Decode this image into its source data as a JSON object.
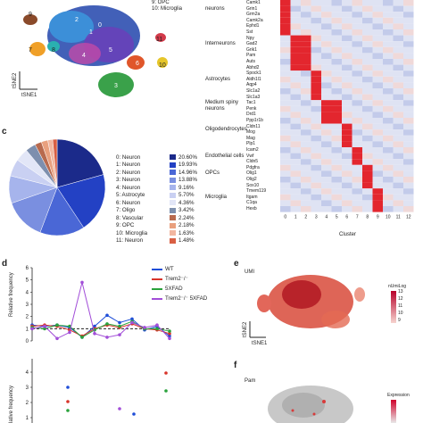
{
  "panel_a": {
    "cluster_numbers": [
      "9",
      "2",
      "1",
      "7",
      "8",
      "4",
      "5",
      "6",
      "3",
      "11",
      "0",
      "10"
    ],
    "legend_line1": "9: OPC",
    "legend_line2": "10: Microglia",
    "axis_x": "tSNE1",
    "axis_y": "tSNE2"
  },
  "panel_b": {
    "group_labels": [
      "neurons",
      "Interneurons",
      "Astrocytes",
      "Medium spiny neurons",
      "Oligodendrocytes",
      "Endothelial cells",
      "OPCs",
      "Microglia"
    ],
    "genes": [
      "Camk1",
      "Grin1",
      "Grm2a",
      "Camk2a",
      "Ephd1",
      "Sst",
      "Npy",
      "Gad2",
      "Grik1",
      "Pam",
      "Auts",
      "Abhd2",
      "Spock1",
      "Aldh1l1",
      "Aqp4",
      "Slc1a2",
      "Slc1a3",
      "Tac1",
      "Penk",
      "Drd1",
      "Ppp1r1b",
      "Cldn11",
      "Mog",
      "Mag",
      "Plp1",
      "Icam2",
      "Vwf",
      "Cldn5",
      "Pdgfra",
      "Olig1",
      "Olig2",
      "Sox10",
      "Tmem119",
      "Itgam",
      "C1qa",
      "Hexb"
    ],
    "cluster_ticks": [
      "0",
      "1",
      "2",
      "3",
      "4",
      "5",
      "6",
      "7",
      "8",
      "9",
      "10",
      "11",
      "12"
    ],
    "xlabel": "Cluster"
  },
  "panel_c": {
    "letter": "c",
    "chart_data": {
      "type": "pie",
      "labels": [
        "0: Neuron",
        "1: Neuron",
        "2: Neuron",
        "3: Neuron",
        "4: Neuron",
        "5: Astrocyte",
        "6: Neuron",
        "7: Oligo",
        "8: Vascular",
        "9: OPC",
        "10: Microglia",
        "11: Neuron"
      ],
      "percent_labels": [
        "20.60%",
        "19.93%",
        "14.96%",
        "13.88%",
        "9.16%",
        "5.70%",
        "4.36%",
        "3.42%",
        "2.24%",
        "2.18%",
        "1.63%",
        "1.48%"
      ],
      "values": [
        20.6,
        19.93,
        14.96,
        13.88,
        9.16,
        5.7,
        4.36,
        3.42,
        2.24,
        2.18,
        1.63,
        1.48
      ],
      "colors": [
        "#1b2a8a",
        "#2341c4",
        "#4a67d6",
        "#7a8fe0",
        "#a6b4ec",
        "#c9d0f2",
        "#e2e6f7",
        "#7d8fae",
        "#b86a4e",
        "#e9a07e",
        "#f2b7a0",
        "#d95f43"
      ]
    }
  },
  "panel_d": {
    "letter": "d",
    "ylabel_top": "Relative frequency",
    "ylabel_bottom": "lative frequency",
    "legend": [
      "WT",
      "Trem2⁻/⁻",
      "5XFAD",
      "Trem2⁻/⁻ 5XFAD"
    ],
    "colors": [
      "#1f4ed8",
      "#d8342a",
      "#2aa23c",
      "#a24ed8"
    ],
    "chart_data": {
      "type": "line",
      "x": [
        0,
        1,
        2,
        3,
        4,
        5,
        6,
        7,
        8,
        9,
        10,
        11
      ],
      "ylim": [
        0,
        6
      ],
      "yticks": [
        "0",
        "1",
        "2",
        "3",
        "4",
        "5",
        "6"
      ],
      "bottom_yticks": [
        "1",
        "2",
        "3",
        "4"
      ],
      "series": [
        {
          "name": "WT",
          "values": [
            1.3,
            1.2,
            1.3,
            1.1,
            0.3,
            1.2,
            2.1,
            1.5,
            1.8,
            0.9,
            1.2,
            0.4
          ]
        },
        {
          "name": "Trem2⁻/⁻",
          "values": [
            1.2,
            1.3,
            1.2,
            0.9,
            0.4,
            1.0,
            1.3,
            1.1,
            1.4,
            1.0,
            0.9,
            0.6
          ]
        },
        {
          "name": "5XFAD",
          "values": [
            1.1,
            1.0,
            1.3,
            1.2,
            0.3,
            0.9,
            1.4,
            1.2,
            1.6,
            1.0,
            1.0,
            0.8
          ]
        },
        {
          "name": "Trem2⁻/⁻ 5XFAD",
          "values": [
            1.0,
            1.2,
            0.2,
            0.7,
            4.8,
            0.6,
            0.3,
            0.5,
            1.5,
            1.1,
            1.3,
            0.2
          ]
        }
      ]
    }
  },
  "panel_e": {
    "letter": "e",
    "title": "UMI",
    "scale_title": "nUmiLog",
    "scale_ticks": [
      "13",
      "12",
      "11",
      "10",
      "9"
    ],
    "axis_x": "tSNE1",
    "axis_y": "tSNE2"
  },
  "panel_f": {
    "letter": "f",
    "title": "Pam",
    "scale_title": "Expression"
  }
}
